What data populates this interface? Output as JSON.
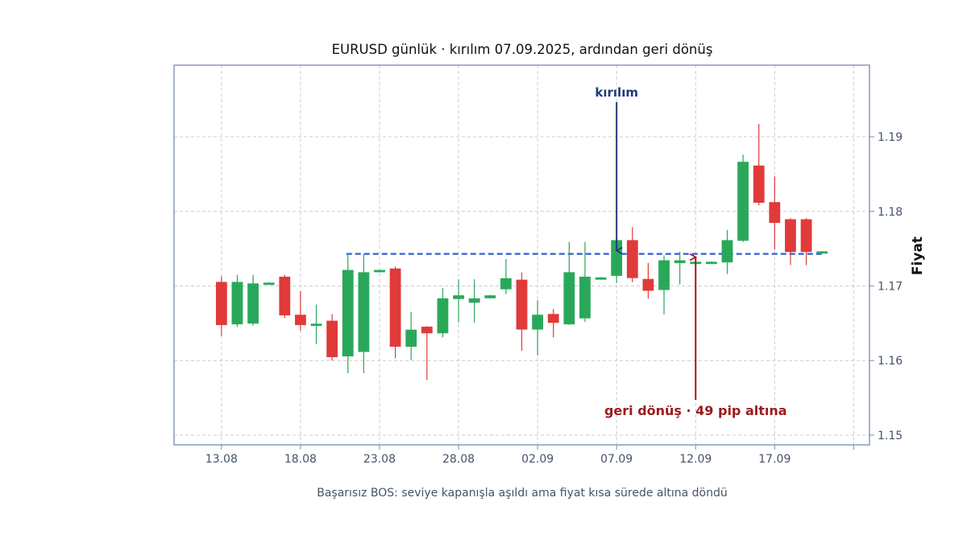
{
  "chart_data": {
    "type": "candlestick",
    "title": "EURUSD günlük · kırılım 07.09.2025, ardından geri dönüş",
    "subtitle": "Başarısız BOS: seviye kapanışla aşıldı ama fiyat kısa sürede altına döndü",
    "ylabel": "Fiyat",
    "xlabel": "",
    "ylim": [
      1.1487,
      1.1996
    ],
    "xlim": [
      "2025-08-10",
      "2025-09-23"
    ],
    "grid": true,
    "y_axis_side": "right",
    "x_ticks": [
      "13.08",
      "18.08",
      "23.08",
      "28.08",
      "02.09",
      "07.09",
      "12.09",
      "17.09",
      ""
    ],
    "y_ticks": [
      "1.15",
      "1.16",
      "1.17",
      "1.18",
      "1.19"
    ],
    "colors": {
      "up": "#2aa85a",
      "down": "#e03a3a",
      "level": "#2f5fd6",
      "arrow_up": "#1f3a7a",
      "arrow_down": "#9b1c1c",
      "frame": "#8fa0bd"
    },
    "level": {
      "value": 1.1743,
      "from": "2025-08-21",
      "to": "2025-09-20"
    },
    "annotations": [
      {
        "text": "kırılım",
        "date": "2025-09-07",
        "target_y": 1.1743
      },
      {
        "text": "geri dönüş · 49 pip altına",
        "date": "2025-09-12",
        "target_y": 1.1743
      }
    ],
    "candles": [
      {
        "date": "2025-08-13",
        "open": 1.1705,
        "high": 1.1713,
        "low": 1.1633,
        "close": 1.1648
      },
      {
        "date": "2025-08-14",
        "open": 1.1649,
        "high": 1.1715,
        "low": 1.1645,
        "close": 1.1705
      },
      {
        "date": "2025-08-15",
        "open": 1.165,
        "high": 1.1715,
        "low": 1.1647,
        "close": 1.1703
      },
      {
        "date": "2025-08-16",
        "open": 1.1703,
        "high": 1.1705,
        "low": 1.1702,
        "close": 1.1704
      },
      {
        "date": "2025-08-17",
        "open": 1.1712,
        "high": 1.1715,
        "low": 1.1657,
        "close": 1.1661
      },
      {
        "date": "2025-08-18",
        "open": 1.1661,
        "high": 1.1693,
        "low": 1.164,
        "close": 1.1648
      },
      {
        "date": "2025-08-19",
        "open": 1.1647,
        "high": 1.1675,
        "low": 1.1622,
        "close": 1.1649
      },
      {
        "date": "2025-08-20",
        "open": 1.1653,
        "high": 1.1662,
        "low": 1.16,
        "close": 1.1605
      },
      {
        "date": "2025-08-21",
        "open": 1.1606,
        "high": 1.1743,
        "low": 1.1583,
        "close": 1.1721
      },
      {
        "date": "2025-08-22",
        "open": 1.1612,
        "high": 1.1743,
        "low": 1.1583,
        "close": 1.1718
      },
      {
        "date": "2025-08-23",
        "open": 1.1719,
        "high": 1.1722,
        "low": 1.1718,
        "close": 1.1721
      },
      {
        "date": "2025-08-24",
        "open": 1.1723,
        "high": 1.1726,
        "low": 1.1603,
        "close": 1.1619
      },
      {
        "date": "2025-08-25",
        "open": 1.1619,
        "high": 1.1665,
        "low": 1.1601,
        "close": 1.1641
      },
      {
        "date": "2025-08-26",
        "open": 1.1645,
        "high": 1.1646,
        "low": 1.1574,
        "close": 1.1637
      },
      {
        "date": "2025-08-27",
        "open": 1.1637,
        "high": 1.1697,
        "low": 1.1631,
        "close": 1.1683
      },
      {
        "date": "2025-08-28",
        "open": 1.1683,
        "high": 1.1709,
        "low": 1.1651,
        "close": 1.1687
      },
      {
        "date": "2025-08-29",
        "open": 1.1678,
        "high": 1.1709,
        "low": 1.1651,
        "close": 1.1683
      },
      {
        "date": "2025-08-30",
        "open": 1.1684,
        "high": 1.1688,
        "low": 1.1683,
        "close": 1.1687
      },
      {
        "date": "2025-08-31",
        "open": 1.1696,
        "high": 1.1736,
        "low": 1.1689,
        "close": 1.171
      },
      {
        "date": "2025-09-01",
        "open": 1.1708,
        "high": 1.1718,
        "low": 1.1613,
        "close": 1.1642
      },
      {
        "date": "2025-09-02",
        "open": 1.1642,
        "high": 1.1681,
        "low": 1.1607,
        "close": 1.1661
      },
      {
        "date": "2025-09-03",
        "open": 1.1662,
        "high": 1.1669,
        "low": 1.1631,
        "close": 1.1651
      },
      {
        "date": "2025-09-04",
        "open": 1.1649,
        "high": 1.1759,
        "low": 1.1648,
        "close": 1.1718
      },
      {
        "date": "2025-09-05",
        "open": 1.1657,
        "high": 1.1759,
        "low": 1.1652,
        "close": 1.1712
      },
      {
        "date": "2025-09-06",
        "open": 1.1711,
        "high": 1.1712,
        "low": 1.171,
        "close": 1.1711
      },
      {
        "date": "2025-09-07",
        "open": 1.1714,
        "high": 1.1764,
        "low": 1.1704,
        "close": 1.1761
      },
      {
        "date": "2025-09-08",
        "open": 1.1761,
        "high": 1.1779,
        "low": 1.1705,
        "close": 1.1711
      },
      {
        "date": "2025-09-09",
        "open": 1.1709,
        "high": 1.1731,
        "low": 1.1683,
        "close": 1.1694
      },
      {
        "date": "2025-09-10",
        "open": 1.1695,
        "high": 1.1741,
        "low": 1.1662,
        "close": 1.1734
      },
      {
        "date": "2025-09-11",
        "open": 1.1731,
        "high": 1.1746,
        "low": 1.1702,
        "close": 1.1734
      },
      {
        "date": "2025-09-12",
        "open": 1.1732,
        "high": 1.1733,
        "low": 1.1731,
        "close": 1.1732
      },
      {
        "date": "2025-09-13",
        "open": 1.1732,
        "high": 1.1733,
        "low": 1.1731,
        "close": 1.1732
      },
      {
        "date": "2025-09-14",
        "open": 1.1732,
        "high": 1.1775,
        "low": 1.1716,
        "close": 1.1761
      },
      {
        "date": "2025-09-15",
        "open": 1.1761,
        "high": 1.1876,
        "low": 1.1759,
        "close": 1.1866
      },
      {
        "date": "2025-09-16",
        "open": 1.1861,
        "high": 1.1917,
        "low": 1.1808,
        "close": 1.1812
      },
      {
        "date": "2025-09-17",
        "open": 1.1812,
        "high": 1.1847,
        "low": 1.1749,
        "close": 1.1785
      },
      {
        "date": "2025-09-18",
        "open": 1.1789,
        "high": 1.1791,
        "low": 1.1728,
        "close": 1.1746
      },
      {
        "date": "2025-09-19",
        "open": 1.1789,
        "high": 1.1791,
        "low": 1.1728,
        "close": 1.1746
      },
      {
        "date": "2025-09-20",
        "open": 1.1746,
        "high": 1.1747,
        "low": 1.1745,
        "close": 1.1746
      }
    ]
  }
}
